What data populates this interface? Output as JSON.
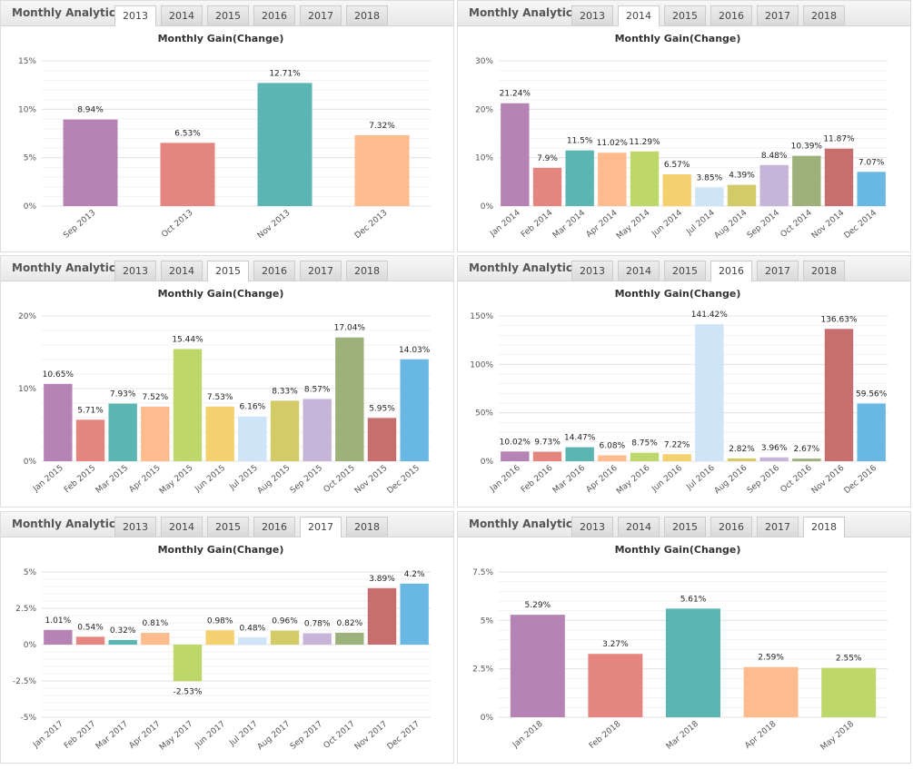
{
  "panel_title": "Monthly Analytics",
  "tabs": [
    "2013",
    "2014",
    "2015",
    "2016",
    "2017",
    "2018"
  ],
  "chart_data": [
    {
      "type": "bar",
      "active_tab": "2013",
      "title": "Monthly Gain(Change)",
      "categories": [
        "Sep 2013",
        "Oct 2013",
        "Nov 2013",
        "Dec 2013"
      ],
      "values": [
        8.94,
        6.53,
        12.71,
        7.32
      ],
      "labels": [
        "8.94%",
        "6.53%",
        "12.71%",
        "7.32%"
      ],
      "ylim": [
        0,
        15
      ],
      "yticks": [
        0,
        5,
        10,
        15
      ],
      "ytick_labels": [
        "0%",
        "5%",
        "10%",
        "15%"
      ],
      "grid": true,
      "colors": [
        "#b584b5",
        "#e5857f",
        "#5ab5b3",
        "#fdbb8e"
      ]
    },
    {
      "type": "bar",
      "active_tab": "2014",
      "title": "Monthly Gain(Change)",
      "categories": [
        "Jan 2014",
        "Feb 2014",
        "Mar 2014",
        "Apr 2014",
        "May 2014",
        "Jun 2014",
        "Jul 2014",
        "Aug 2014",
        "Sep 2014",
        "Oct 2014",
        "Nov 2014",
        "Dec 2014"
      ],
      "values": [
        21.24,
        7.9,
        11.5,
        11.02,
        11.29,
        6.57,
        3.85,
        4.39,
        8.48,
        10.39,
        11.87,
        7.07
      ],
      "labels": [
        "21.24%",
        "7.9%",
        "11.5%",
        "11.02%",
        "11.29%",
        "6.57%",
        "3.85%",
        "4.39%",
        "8.48%",
        "10.39%",
        "11.87%",
        "7.07%"
      ],
      "ylim": [
        0,
        30
      ],
      "yticks": [
        0,
        10,
        20,
        30
      ],
      "ytick_labels": [
        "0%",
        "10%",
        "20%",
        "30%"
      ],
      "grid": true,
      "colors": [
        "#b584b5",
        "#e5857f",
        "#5ab5b3",
        "#fdbb8e",
        "#bdd76b",
        "#f5d06e",
        "#cfe4f7",
        "#d2cb67",
        "#c6b5d8",
        "#9db27b",
        "#c76e6f",
        "#68b8e3"
      ]
    },
    {
      "type": "bar",
      "active_tab": "2015",
      "title": "Monthly Gain(Change)",
      "categories": [
        "Jan 2015",
        "Feb 2015",
        "Mar 2015",
        "Apr 2015",
        "May 2015",
        "Jun 2015",
        "Jul 2015",
        "Aug 2015",
        "Sep 2015",
        "Oct 2015",
        "Nov 2015",
        "Dec 2015"
      ],
      "values": [
        10.65,
        5.71,
        7.93,
        7.52,
        15.44,
        7.53,
        6.16,
        8.33,
        8.57,
        17.04,
        5.95,
        14.03
      ],
      "labels": [
        "10.65%",
        "5.71%",
        "7.93%",
        "7.52%",
        "15.44%",
        "7.53%",
        "6.16%",
        "8.33%",
        "8.57%",
        "17.04%",
        "5.95%",
        "14.03%"
      ],
      "ylim": [
        0,
        20
      ],
      "yticks": [
        0,
        10,
        20
      ],
      "ytick_labels": [
        "0%",
        "10%",
        "20%"
      ],
      "grid": true,
      "colors": [
        "#b584b5",
        "#e5857f",
        "#5ab5b3",
        "#fdbb8e",
        "#bdd76b",
        "#f5d06e",
        "#cfe4f7",
        "#d2cb67",
        "#c6b5d8",
        "#9db27b",
        "#c76e6f",
        "#68b8e3"
      ]
    },
    {
      "type": "bar",
      "active_tab": "2016",
      "title": "Monthly Gain(Change)",
      "categories": [
        "Jan 2016",
        "Feb 2016",
        "Mar 2016",
        "Apr 2016",
        "May 2016",
        "Jun 2016",
        "Jul 2016",
        "Aug 2016",
        "Sep 2016",
        "Oct 2016",
        "Nov 2016",
        "Dec 2016"
      ],
      "values": [
        10.02,
        9.73,
        14.47,
        6.08,
        8.75,
        7.22,
        141.42,
        2.82,
        3.96,
        2.67,
        136.63,
        59.56
      ],
      "labels": [
        "10.02%",
        "9.73%",
        "14.47%",
        "6.08%",
        "8.75%",
        "7.22%",
        "141.42%",
        "2.82%",
        "3.96%",
        "2.67%",
        "136.63%",
        "59.56%"
      ],
      "ylim": [
        0,
        150
      ],
      "yticks": [
        0,
        50,
        100,
        150
      ],
      "ytick_labels": [
        "0%",
        "50%",
        "100%",
        "150%"
      ],
      "grid": true,
      "colors": [
        "#b584b5",
        "#e5857f",
        "#5ab5b3",
        "#fdbb8e",
        "#bdd76b",
        "#f5d06e",
        "#cfe4f7",
        "#d2cb67",
        "#c6b5d8",
        "#9db27b",
        "#c76e6f",
        "#68b8e3"
      ]
    },
    {
      "type": "bar",
      "active_tab": "2017",
      "title": "Monthly Gain(Change)",
      "categories": [
        "Jan 2017",
        "Feb 2017",
        "Mar 2017",
        "Apr 2017",
        "May 2017",
        "Jun 2017",
        "Jul 2017",
        "Aug 2017",
        "Sep 2017",
        "Oct 2017",
        "Nov 2017",
        "Dec 2017"
      ],
      "values": [
        1.01,
        0.54,
        0.32,
        0.81,
        -2.53,
        0.98,
        0.48,
        0.96,
        0.78,
        0.82,
        3.89,
        4.2
      ],
      "labels": [
        "1.01%",
        "0.54%",
        "0.32%",
        "0.81%",
        "-2.53%",
        "0.98%",
        "0.48%",
        "0.96%",
        "0.78%",
        "0.82%",
        "3.89%",
        "4.2%"
      ],
      "ylim": [
        -5,
        5
      ],
      "yticks": [
        -5,
        -2.5,
        0,
        2.5,
        5
      ],
      "ytick_labels": [
        "-5%",
        "-2.5%",
        "0%",
        "2.5%",
        "5%"
      ],
      "grid": true,
      "colors": [
        "#b584b5",
        "#e5857f",
        "#5ab5b3",
        "#fdbb8e",
        "#bdd76b",
        "#f5d06e",
        "#cfe4f7",
        "#d2cb67",
        "#c6b5d8",
        "#9db27b",
        "#c76e6f",
        "#68b8e3"
      ]
    },
    {
      "type": "bar",
      "active_tab": "2018",
      "title": "Monthly Gain(Change)",
      "categories": [
        "Jan 2018",
        "Feb 2018",
        "Mar 2018",
        "Apr 2018",
        "May 2018"
      ],
      "values": [
        5.29,
        3.27,
        5.61,
        2.59,
        2.55
      ],
      "labels": [
        "5.29%",
        "3.27%",
        "5.61%",
        "2.59%",
        "2.55%"
      ],
      "ylim": [
        0,
        7.5
      ],
      "yticks": [
        0,
        2.5,
        5,
        7.5
      ],
      "ytick_labels": [
        "0%",
        "2.5%",
        "5%",
        "7.5%"
      ],
      "grid": true,
      "colors": [
        "#b584b5",
        "#e5857f",
        "#5ab5b3",
        "#fdbb8e",
        "#bdd76b"
      ]
    }
  ]
}
